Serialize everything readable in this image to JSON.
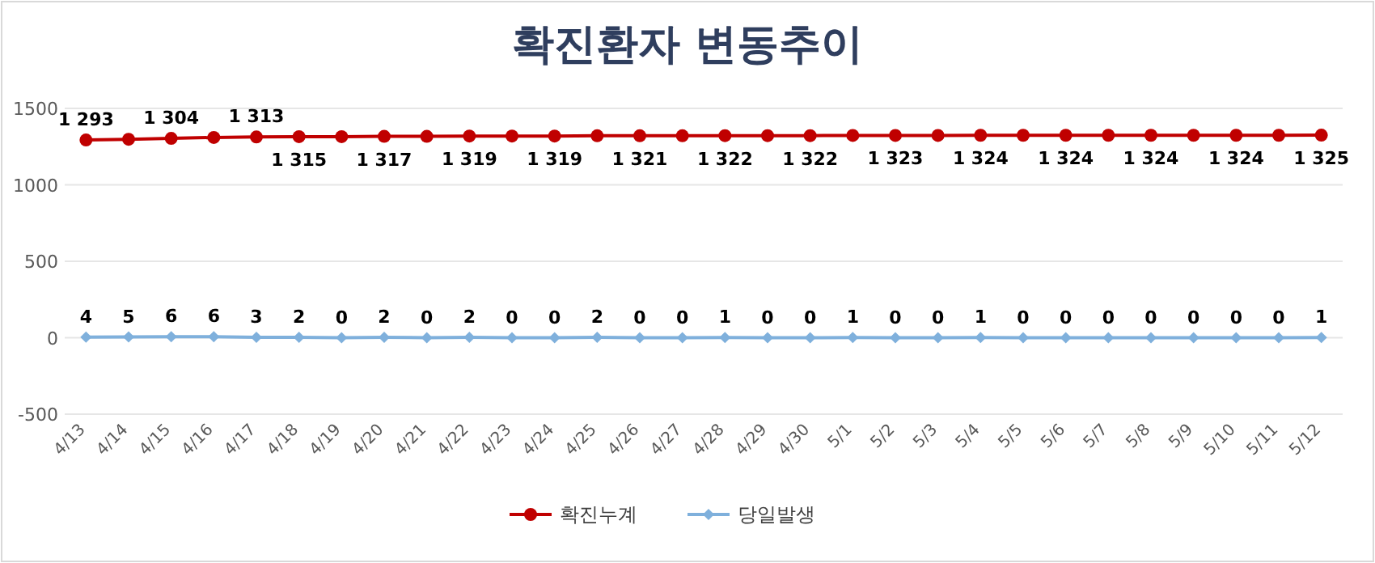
{
  "chart_data": {
    "type": "line",
    "title": "확진환자 변동추이",
    "categories": [
      "4/13",
      "4/14",
      "4/15",
      "4/16",
      "4/17",
      "4/18",
      "4/19",
      "4/20",
      "4/21",
      "4/22",
      "4/23",
      "4/24",
      "4/25",
      "4/26",
      "4/27",
      "4/28",
      "4/29",
      "4/30",
      "5/1",
      "5/2",
      "5/3",
      "5/4",
      "5/5",
      "5/6",
      "5/7",
      "5/8",
      "5/9",
      "5/10",
      "5/11",
      "5/12"
    ],
    "series": [
      {
        "name": "확진누계",
        "color": "#c00000",
        "marker": "circle",
        "values": [
          1293,
          1298,
          1304,
          1310,
          1313,
          1315,
          1315,
          1317,
          1317,
          1319,
          1319,
          1319,
          1321,
          1321,
          1321,
          1322,
          1322,
          1322,
          1323,
          1323,
          1323,
          1324,
          1324,
          1324,
          1324,
          1324,
          1324,
          1324,
          1324,
          1325
        ],
        "value_labels": [
          "1 293",
          null,
          "1 304",
          null,
          "1 313",
          "1 315",
          null,
          "1 317",
          null,
          "1 319",
          null,
          "1 319",
          null,
          "1 321",
          null,
          "1 322",
          null,
          "1 322",
          null,
          "1 323",
          null,
          "1 324",
          null,
          "1 324",
          null,
          "1 324",
          null,
          "1 324",
          null,
          "1 325"
        ]
      },
      {
        "name": "당일발생",
        "color": "#7fb0dc",
        "marker": "diamond",
        "values": [
          4,
          5,
          6,
          6,
          3,
          2,
          0,
          2,
          0,
          2,
          0,
          0,
          2,
          0,
          0,
          1,
          0,
          0,
          1,
          0,
          0,
          1,
          0,
          0,
          0,
          0,
          0,
          0,
          0,
          1
        ],
        "value_labels": [
          "4",
          "5",
          "6",
          "6",
          "3",
          "2",
          "0",
          "2",
          "0",
          "2",
          "0",
          "0",
          "2",
          "0",
          "0",
          "1",
          "0",
          "0",
          "1",
          "0",
          "0",
          "1",
          "0",
          "0",
          "0",
          "0",
          "0",
          "0",
          "0",
          "1"
        ]
      }
    ],
    "ylim": [
      -500,
      1500
    ],
    "yticks": [
      -500,
      0,
      500,
      1000,
      1500
    ],
    "grid": "y",
    "legend": "bottom",
    "line_style": "solid"
  }
}
